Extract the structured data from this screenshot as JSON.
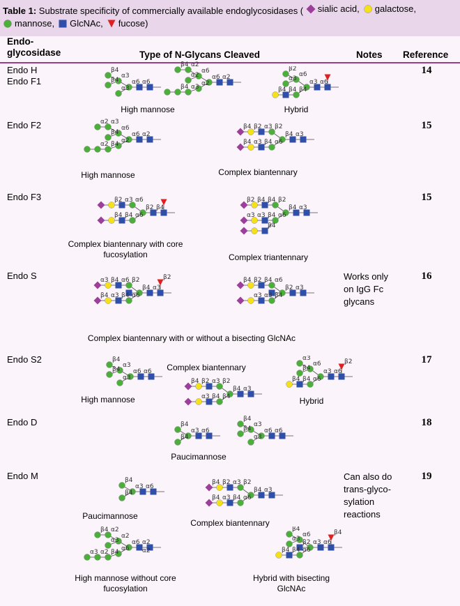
{
  "caption": {
    "label": "Table 1:",
    "text": "Substrate specificity of commercially available endoglycosidases (",
    "legend": [
      "sialic acid,",
      "galactose,",
      "mannose,",
      "GlcNAc,",
      "fucose)"
    ]
  },
  "header": [
    "Endo-glycosidase",
    "Type of N-Glycans Cleaved",
    "Notes",
    "Reference"
  ],
  "rows": [
    {
      "enzyme": [
        "Endo H",
        "Endo F1"
      ],
      "reference": "14",
      "glycans": [
        {
          "caption": "High mannose",
          "linkages": [
            "α6",
            "α6",
            "α3",
            "α3",
            "β4",
            "β4"
          ]
        },
        {
          "linkages": [
            "α2",
            "α6",
            "α6",
            "α2",
            "α2",
            "α2",
            "α3",
            "β4",
            "β4"
          ]
        },
        {
          "caption": "Hybrid",
          "linkages": [
            "α6",
            "α3",
            "α6",
            "β4",
            "β2",
            "α3",
            "β4",
            "β4"
          ]
        }
      ]
    },
    {
      "enzyme": [
        "Endo F2"
      ],
      "reference": "15",
      "glycans": [
        {
          "caption": "High mannose",
          "linkages": [
            "α2",
            "α6",
            "α6",
            "α2",
            "α3",
            "β4",
            "β4",
            "α2",
            "α2"
          ]
        },
        {
          "caption": "Complex biantennary",
          "linkages": [
            "α3",
            "β4",
            "β2",
            "α6",
            "α3",
            "β4",
            "β2",
            "α3",
            "β4",
            "β4"
          ]
        }
      ]
    },
    {
      "enzyme": [
        "Endo F3"
      ],
      "reference": "15",
      "glycans": [
        {
          "caption": "Complex biantennary with core fucosylation",
          "linkages": [
            "β4",
            "β2",
            "α6",
            "α6",
            "α3",
            "β4",
            "β2",
            "β4"
          ]
        },
        {
          "caption": "Complex triantennary",
          "linkages": [
            "α3",
            "β4",
            "β2",
            "α6",
            "β4",
            "β4",
            "β4",
            "α3",
            "β2",
            "α3",
            "β4"
          ]
        }
      ]
    },
    {
      "enzyme": [
        "Endo S"
      ],
      "notes": "Works only on IgG Fc glycans",
      "reference": "16",
      "glycans": [
        {
          "caption": "Complex biantennary with or without a bisecting GlcNAc",
          "linkages": [
            "α3",
            "β4",
            "β2",
            "α6",
            "α6",
            "β4",
            "β4",
            "α3",
            "α3",
            "β4",
            "β2"
          ]
        },
        {
          "linkages": [
            "α3",
            "β2",
            "α6",
            "β4",
            "β4",
            "α3",
            "β2",
            "α3",
            "β4"
          ]
        }
      ]
    },
    {
      "enzyme": [
        "Endo S2"
      ],
      "reference": "17",
      "glycans": [
        {
          "caption": "High mannose",
          "linkages": [
            "α6",
            "α6",
            "α3",
            "α3",
            "β4",
            "β4"
          ]
        },
        {
          "caption": "Complex biantennary",
          "linkages": [
            "α3",
            "β4",
            "β2",
            "β4",
            "α3",
            "β4",
            "β2",
            "α3",
            "β4"
          ]
        },
        {
          "caption": "Hybrid",
          "linkages": [
            "α6",
            "α3",
            "α6",
            "α6",
            "α3",
            "β4",
            "β4",
            "β4",
            "β2"
          ]
        }
      ]
    },
    {
      "enzyme": [
        "Endo D"
      ],
      "reference": "18",
      "glycans": [
        {
          "caption": "Paucimannose",
          "linkages": [
            "α6",
            "α3",
            "β4",
            "β4"
          ]
        },
        {
          "linkages": [
            "α6",
            "α6",
            "α3",
            "α3",
            "β4",
            "β4"
          ]
        }
      ]
    },
    {
      "enzyme": [
        "Endo M"
      ],
      "notes": "Can also do trans-glyco-sylation reactions",
      "reference": "19",
      "glycans": [
        {
          "caption": "Paucimannose",
          "linkages": [
            "α6",
            "α3",
            "β4",
            "β4"
          ]
        },
        {
          "caption": "Complex biantennary",
          "linkages": [
            "α3",
            "β4",
            "β2",
            "α6",
            "α3",
            "β4",
            "β2",
            "α3",
            "β4",
            "β4"
          ]
        },
        {
          "caption": "High mannose without core fucosylation",
          "linkages": [
            "α2",
            "α6",
            "α2",
            "α6",
            "α2",
            "α3",
            "β4",
            "β4",
            "α2",
            "α3",
            "α2"
          ]
        },
        {
          "caption": "Hybrid with bisecting GlcNAc",
          "linkages": [
            "α6",
            "α3",
            "α6",
            "α6",
            "β4",
            "α3",
            "β4",
            "β4",
            "β4",
            "β2"
          ]
        }
      ]
    }
  ]
}
